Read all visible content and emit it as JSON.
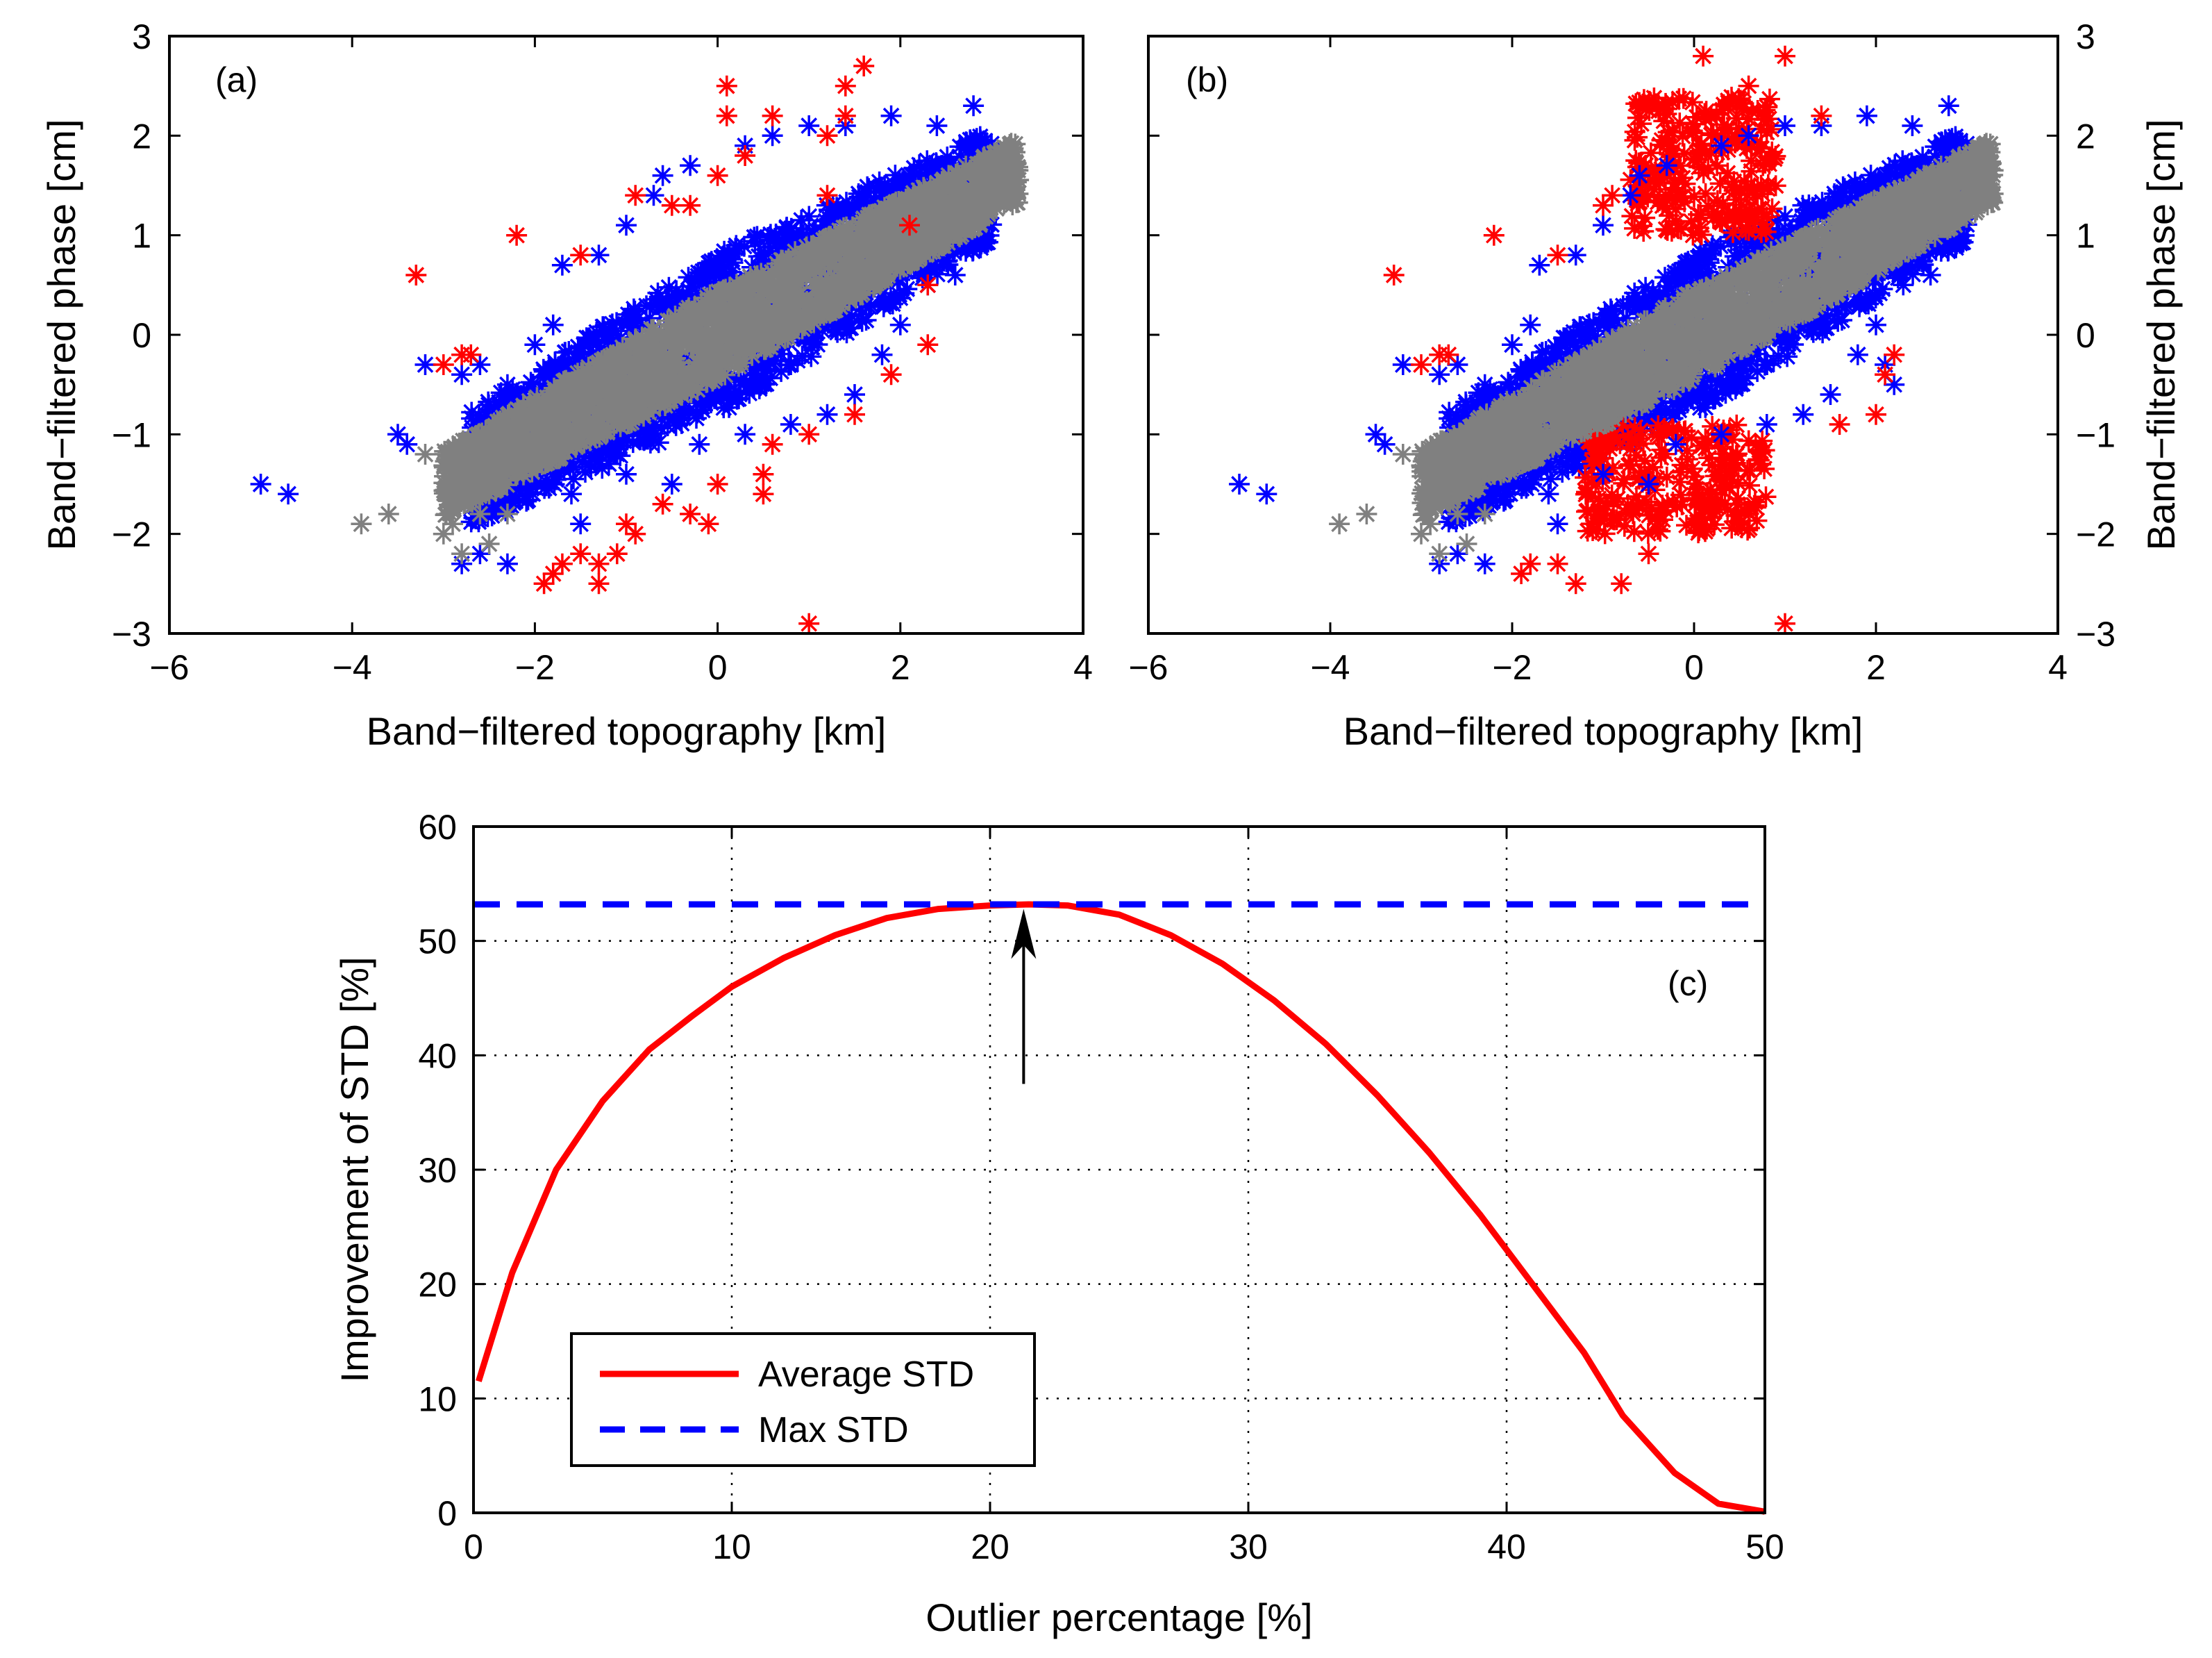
{
  "chart_data": [
    {
      "id": "a",
      "type": "scatter",
      "panel_label": "(a)",
      "xlabel": "Band−filtered topography [km]",
      "ylabel": "Band−filtered phase [cm]",
      "xlim": [
        -6,
        4
      ],
      "ylim": [
        -3,
        3
      ],
      "xticks": [
        -6,
        -4,
        -2,
        0,
        2,
        4
      ],
      "yticks": [
        -3,
        -2,
        -1,
        0,
        1,
        2,
        3
      ],
      "xtick_labels": [
        "−6",
        "−4",
        "−2",
        "0",
        "2",
        "4"
      ],
      "ytick_labels": [
        "−3",
        "−2",
        "−1",
        "0",
        "1",
        "2",
        "3"
      ],
      "ylabel_side": "left",
      "grid": false,
      "cluster": {
        "slope": 0.5,
        "intercept": 0.0,
        "x_range": [
          -3.0,
          3.3
        ],
        "core_halfwidth": 0.45,
        "blue_halfwidth": 0.82
      },
      "series": [
        {
          "name": "gray",
          "color": "#808080",
          "points": [
            [
              -3.9,
              -1.9
            ],
            [
              -3.6,
              -1.8
            ],
            [
              -3.0,
              -2.0
            ],
            [
              -2.9,
              -1.9
            ],
            [
              -2.5,
              -2.1
            ],
            [
              -2.6,
              -1.8
            ],
            [
              -2.3,
              -1.8
            ],
            [
              -2.5,
              -1.6
            ],
            [
              -2.8,
              -1.3
            ],
            [
              -2.6,
              -1.6
            ],
            [
              -2.8,
              -2.2
            ],
            [
              -3.2,
              -1.2
            ],
            [
              3.2,
              1.4
            ]
          ]
        },
        {
          "name": "blue",
          "color": "#0000ff",
          "points": [
            [
              -5.0,
              -1.5
            ],
            [
              -4.7,
              -1.6
            ],
            [
              -3.5,
              -1.0
            ],
            [
              -3.4,
              -1.1
            ],
            [
              -2.8,
              -0.4
            ],
            [
              -2.6,
              -0.3
            ],
            [
              -3.2,
              -0.3
            ],
            [
              -2.3,
              -0.5
            ],
            [
              -2.2,
              -0.7
            ],
            [
              -2.0,
              -0.1
            ],
            [
              -1.8,
              0.1
            ],
            [
              -2.8,
              -2.3
            ],
            [
              -2.6,
              -2.2
            ],
            [
              -2.3,
              -2.3
            ],
            [
              -1.5,
              -1.9
            ],
            [
              -1.6,
              -1.6
            ],
            [
              -1.7,
              0.7
            ],
            [
              -1.3,
              0.8
            ],
            [
              -1.0,
              1.1
            ],
            [
              -0.7,
              1.4
            ],
            [
              -0.6,
              1.6
            ],
            [
              -0.3,
              1.7
            ],
            [
              0.3,
              1.9
            ],
            [
              0.6,
              2.0
            ],
            [
              1.0,
              2.1
            ],
            [
              1.4,
              2.1
            ],
            [
              1.9,
              2.2
            ],
            [
              2.4,
              2.1
            ],
            [
              2.8,
              2.3
            ],
            [
              2.3,
              0.5
            ],
            [
              2.6,
              0.6
            ],
            [
              1.5,
              -0.6
            ],
            [
              1.2,
              -0.8
            ],
            [
              0.8,
              -0.9
            ],
            [
              0.3,
              -1.0
            ],
            [
              -0.2,
              -1.1
            ],
            [
              -0.5,
              -1.5
            ],
            [
              -1.0,
              -1.4
            ],
            [
              -1.4,
              -1.3
            ],
            [
              2.0,
              0.1
            ],
            [
              1.8,
              -0.2
            ]
          ]
        },
        {
          "name": "red",
          "color": "#ff0000",
          "points": [
            [
              -3.3,
              0.6
            ],
            [
              -3.0,
              -0.3
            ],
            [
              -2.8,
              -0.2
            ],
            [
              -2.7,
              -0.2
            ],
            [
              -2.2,
              1.0
            ],
            [
              -1.5,
              0.8
            ],
            [
              -0.9,
              1.4
            ],
            [
              -0.5,
              1.3
            ],
            [
              -0.3,
              1.3
            ],
            [
              0.0,
              1.6
            ],
            [
              0.1,
              2.2
            ],
            [
              0.1,
              2.5
            ],
            [
              0.3,
              1.8
            ],
            [
              0.6,
              2.2
            ],
            [
              1.2,
              2.0
            ],
            [
              1.4,
              2.2
            ],
            [
              1.4,
              2.5
            ],
            [
              1.6,
              2.7
            ],
            [
              1.2,
              1.4
            ],
            [
              2.1,
              1.1
            ],
            [
              2.3,
              0.5
            ],
            [
              2.3,
              -0.1
            ],
            [
              1.9,
              -0.4
            ],
            [
              1.5,
              -0.8
            ],
            [
              1.0,
              -1.0
            ],
            [
              0.6,
              -1.1
            ],
            [
              0.5,
              -1.4
            ],
            [
              0.0,
              -1.5
            ],
            [
              0.5,
              -1.6
            ],
            [
              -0.3,
              -1.8
            ],
            [
              -0.1,
              -1.9
            ],
            [
              -0.6,
              -1.7
            ],
            [
              -0.9,
              -2.0
            ],
            [
              -1.0,
              -1.9
            ],
            [
              -1.3,
              -2.3
            ],
            [
              -1.3,
              -2.5
            ],
            [
              -1.5,
              -2.2
            ],
            [
              -1.7,
              -2.3
            ],
            [
              -1.8,
              -2.4
            ],
            [
              -1.9,
              -2.5
            ],
            [
              -1.1,
              -2.2
            ],
            [
              1.0,
              -2.9
            ]
          ]
        }
      ]
    },
    {
      "id": "b",
      "type": "scatter",
      "panel_label": "(b)",
      "xlabel": "Band−filtered topography [km]",
      "ylabel": "Band−filtered phase [cm]",
      "xlim": [
        -6,
        4
      ],
      "ylim": [
        -3,
        3
      ],
      "xticks": [
        -6,
        -4,
        -2,
        0,
        2,
        4
      ],
      "yticks": [
        -3,
        -2,
        -1,
        0,
        1,
        2,
        3
      ],
      "xtick_labels": [
        "−6",
        "−4",
        "−2",
        "0",
        "2",
        "4"
      ],
      "ytick_labels": [
        "−3",
        "−2",
        "−1",
        "0",
        "1",
        "2",
        "3"
      ],
      "ylabel_side": "right",
      "grid": false,
      "cluster": {
        "slope": 0.5,
        "intercept": 0.0,
        "x_range": [
          -3.0,
          3.3
        ],
        "core_halfwidth": 0.45,
        "blue_halfwidth": 0.82
      },
      "red_blocks": [
        {
          "x_range": [
            -0.7,
            0.9
          ],
          "y_range": [
            1.0,
            2.4
          ]
        },
        {
          "x_range": [
            -1.2,
            0.8
          ],
          "y_range": [
            -2.0,
            -0.9
          ]
        }
      ],
      "series": [
        {
          "name": "gray",
          "color": "#808080",
          "points": [
            [
              -3.9,
              -1.9
            ],
            [
              -3.6,
              -1.8
            ],
            [
              -3.0,
              -2.0
            ],
            [
              -2.9,
              -1.9
            ],
            [
              -2.5,
              -2.1
            ],
            [
              -2.6,
              -1.8
            ],
            [
              -2.3,
              -1.8
            ],
            [
              -2.5,
              -1.6
            ],
            [
              -2.8,
              -1.3
            ],
            [
              -2.6,
              -1.6
            ],
            [
              -2.8,
              -2.2
            ],
            [
              -3.2,
              -1.2
            ],
            [
              3.2,
              1.4
            ]
          ]
        },
        {
          "name": "blue",
          "color": "#0000ff",
          "points": [
            [
              -5.0,
              -1.5
            ],
            [
              -4.7,
              -1.6
            ],
            [
              -3.5,
              -1.0
            ],
            [
              -3.4,
              -1.1
            ],
            [
              -2.8,
              -0.4
            ],
            [
              -2.6,
              -0.3
            ],
            [
              -3.2,
              -0.3
            ],
            [
              -2.3,
              -0.5
            ],
            [
              -2.2,
              -0.7
            ],
            [
              -2.0,
              -0.1
            ],
            [
              -1.8,
              0.1
            ],
            [
              -2.8,
              -2.3
            ],
            [
              -2.6,
              -2.2
            ],
            [
              -2.3,
              -2.3
            ],
            [
              -1.5,
              -1.9
            ],
            [
              -1.6,
              -1.6
            ],
            [
              -1.7,
              0.7
            ],
            [
              -1.3,
              0.8
            ],
            [
              -1.0,
              1.1
            ],
            [
              -0.7,
              1.4
            ],
            [
              -0.6,
              1.6
            ],
            [
              -0.3,
              1.7
            ],
            [
              0.3,
              1.9
            ],
            [
              0.6,
              2.0
            ],
            [
              1.0,
              2.1
            ],
            [
              1.4,
              2.1
            ],
            [
              1.9,
              2.2
            ],
            [
              2.4,
              2.1
            ],
            [
              2.8,
              2.3
            ],
            [
              2.3,
              0.5
            ],
            [
              2.6,
              0.6
            ],
            [
              1.5,
              -0.6
            ],
            [
              1.2,
              -0.8
            ],
            [
              0.8,
              -0.9
            ],
            [
              0.3,
              -1.0
            ],
            [
              -0.2,
              -1.1
            ],
            [
              -0.5,
              -1.5
            ],
            [
              -1.0,
              -1.4
            ],
            [
              -1.4,
              -1.3
            ],
            [
              2.0,
              0.1
            ],
            [
              1.8,
              -0.2
            ],
            [
              2.1,
              -0.3
            ],
            [
              2.2,
              -0.5
            ]
          ]
        },
        {
          "name": "red",
          "color": "#ff0000",
          "points": [
            [
              -3.3,
              0.6
            ],
            [
              -3.0,
              -0.3
            ],
            [
              -2.8,
              -0.2
            ],
            [
              -2.7,
              -0.2
            ],
            [
              -2.2,
              1.0
            ],
            [
              -1.5,
              0.8
            ],
            [
              -1.0,
              1.3
            ],
            [
              -0.9,
              1.4
            ],
            [
              0.1,
              2.8
            ],
            [
              1.0,
              2.8
            ],
            [
              0.6,
              2.5
            ],
            [
              1.4,
              2.2
            ],
            [
              2.2,
              -0.2
            ],
            [
              2.1,
              -0.4
            ],
            [
              2.0,
              -0.8
            ],
            [
              1.6,
              -0.9
            ],
            [
              -1.8,
              -2.3
            ],
            [
              -1.9,
              -2.4
            ],
            [
              -1.5,
              -2.3
            ],
            [
              -1.3,
              -2.5
            ],
            [
              -0.8,
              -2.5
            ],
            [
              -0.5,
              -2.2
            ],
            [
              1.0,
              -2.9
            ]
          ]
        }
      ]
    },
    {
      "id": "c",
      "type": "line",
      "panel_label": "(c)",
      "xlabel": "Outlier percentage [%]",
      "ylabel": "Improvement of STD [%]",
      "xlim": [
        0,
        50
      ],
      "ylim": [
        0,
        60
      ],
      "xticks": [
        0,
        10,
        20,
        30,
        40,
        50
      ],
      "yticks": [
        0,
        10,
        20,
        30,
        40,
        50,
        60
      ],
      "xtick_labels": [
        "0",
        "10",
        "20",
        "30",
        "40",
        "50"
      ],
      "ytick_labels": [
        "0",
        "10",
        "20",
        "30",
        "40",
        "50",
        "60"
      ],
      "grid": true,
      "legend_position": "bottom-left",
      "series": [
        {
          "name": "Average STD",
          "color": "#ff0000",
          "style": "solid",
          "x": [
            0.2,
            1.5,
            3.2,
            5.0,
            6.8,
            8.5,
            10.0,
            12.0,
            14.0,
            16.0,
            18.0,
            20.0,
            21.5,
            23.0,
            25.0,
            27.0,
            29.0,
            31.0,
            33.0,
            35.0,
            37.0,
            39.0,
            41.0,
            43.0,
            44.5,
            46.5,
            48.2,
            50.0
          ],
          "y": [
            11.5,
            21.0,
            30.0,
            36.0,
            40.5,
            43.5,
            46.0,
            48.5,
            50.5,
            52.0,
            52.8,
            53.1,
            53.2,
            53.1,
            52.3,
            50.5,
            48.0,
            44.8,
            41.0,
            36.5,
            31.5,
            26.0,
            20.0,
            14.0,
            8.5,
            3.5,
            0.8,
            0.1
          ]
        },
        {
          "name": "Max STD",
          "color": "#0000ff",
          "style": "dashed",
          "x": [
            0,
            50
          ],
          "y": [
            53.2,
            53.2
          ]
        }
      ],
      "annotations": [
        {
          "type": "arrow",
          "x": 21.3,
          "y_from": 37.5,
          "y_to": 52.8,
          "color": "#000000"
        }
      ]
    }
  ]
}
